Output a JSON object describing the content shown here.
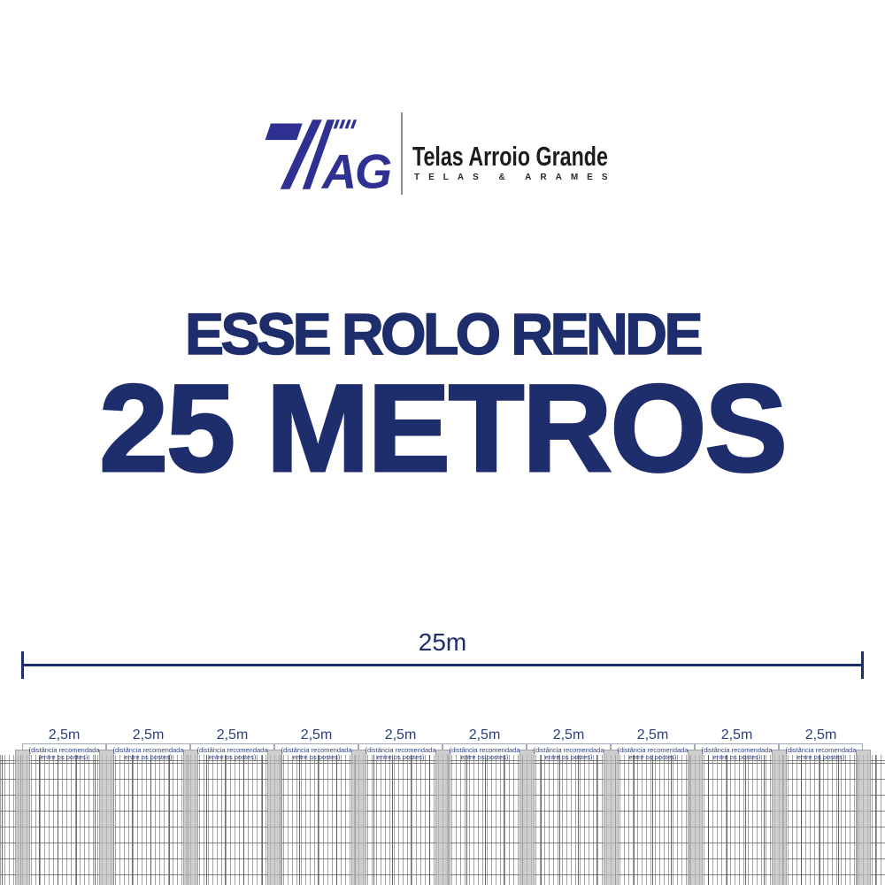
{
  "logo": {
    "monogram": "AG",
    "name": "Telas Arroio Grande",
    "tagline": "TELAS & ARAMES",
    "mark_color": "#2e3192"
  },
  "headline": {
    "line1": "ESSE ROLO RENDE",
    "line2": "25 METROS",
    "color": "#1e2d6b"
  },
  "measurement": {
    "label": "25m"
  },
  "fence": {
    "post_count": 11,
    "spans": [
      {
        "label": "2,5m",
        "note_line1": "(distância recomendada",
        "note_line2": "entre os postes)"
      },
      {
        "label": "2,5m",
        "note_line1": "(distância recomendada",
        "note_line2": "entre os postes)"
      },
      {
        "label": "2,5m",
        "note_line1": "(distância recomendada",
        "note_line2": "entre os postes)"
      },
      {
        "label": "2,5m",
        "note_line1": "(distância recomendada",
        "note_line2": "entre os postes)"
      },
      {
        "label": "2,5m",
        "note_line1": "(distância recomendada",
        "note_line2": "entre os postes)"
      },
      {
        "label": "2,5m",
        "note_line1": "(distância recomendada",
        "note_line2": "entre os postes)"
      },
      {
        "label": "2,5m",
        "note_line1": "(distância recomendada",
        "note_line2": "entre os postes)"
      },
      {
        "label": "2,5m",
        "note_line1": "(distância recomendada",
        "note_line2": "entre os postes)"
      },
      {
        "label": "2,5m",
        "note_line1": "(distância recomendada",
        "note_line2": "entre os postes)"
      },
      {
        "label": "2,5m",
        "note_line1": "(distância recomendada",
        "note_line2": "entre os postes)"
      }
    ]
  },
  "colors": {
    "navy": "#1e2d6b",
    "brand_indigo": "#2e3192",
    "post_gray": "#d5d5d5"
  }
}
